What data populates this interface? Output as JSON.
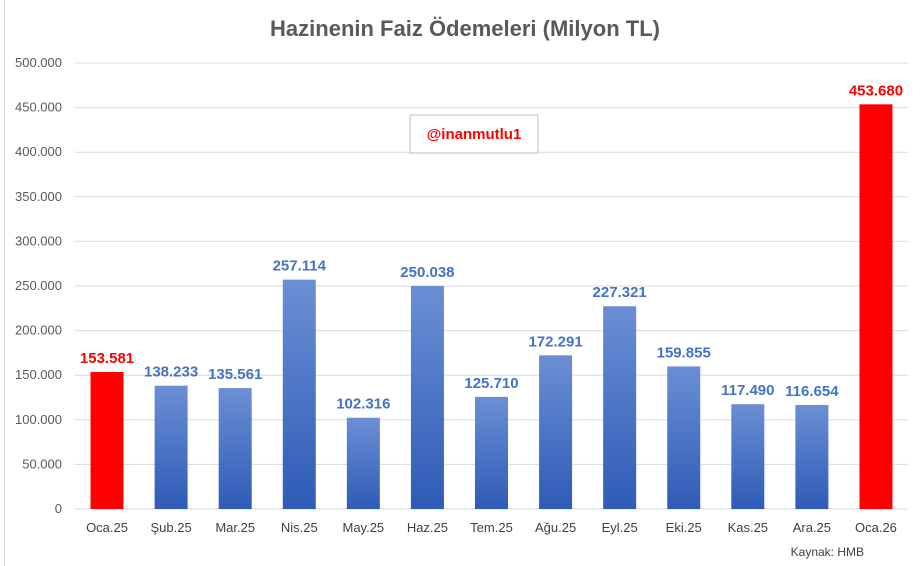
{
  "chart_data": {
    "type": "bar",
    "title": "Hazinenin Faiz Ödemeleri (Milyon TL)",
    "categories": [
      "Oca.25",
      "Şub.25",
      "Mar.25",
      "Nis.25",
      "May.25",
      "Haz.25",
      "Tem.25",
      "Ağu.25",
      "Eyl.25",
      "Eki.25",
      "Kas.25",
      "Ara.25",
      "Oca.26"
    ],
    "values": [
      153581,
      138233,
      135561,
      257114,
      102316,
      250038,
      125710,
      172291,
      227321,
      159855,
      117490,
      116654,
      453680
    ],
    "value_labels": [
      "153.581",
      "138.233",
      "135.561",
      "257.114",
      "102.316",
      "250.038",
      "125.710",
      "172.291",
      "227.321",
      "159.855",
      "117.490",
      "116.654",
      "453.680"
    ],
    "highlighted": [
      true,
      false,
      false,
      false,
      false,
      false,
      false,
      false,
      false,
      false,
      false,
      false,
      true
    ],
    "y_ticks": [
      0,
      50000,
      100000,
      150000,
      200000,
      250000,
      300000,
      350000,
      400000,
      450000,
      500000
    ],
    "y_tick_labels": [
      "0",
      "50.000",
      "100.000",
      "150.000",
      "200.000",
      "250.000",
      "300.000",
      "350.000",
      "400.000",
      "450.000",
      "500.000"
    ],
    "ylim": [
      0,
      500000
    ],
    "grid": true,
    "legend": "none",
    "colors": {
      "bar": "#4472c4",
      "bar_dark": "#2f5bb7",
      "bar_light": "#6b8fd4",
      "highlight": "#ff0000",
      "label": "#4472c4",
      "highlight_label": "#ff0000",
      "grid": "#d9d9d9"
    }
  },
  "watermark": {
    "text": "@inanmutlu1",
    "color": "#ff0000"
  },
  "source": "Kaynak: HMB"
}
